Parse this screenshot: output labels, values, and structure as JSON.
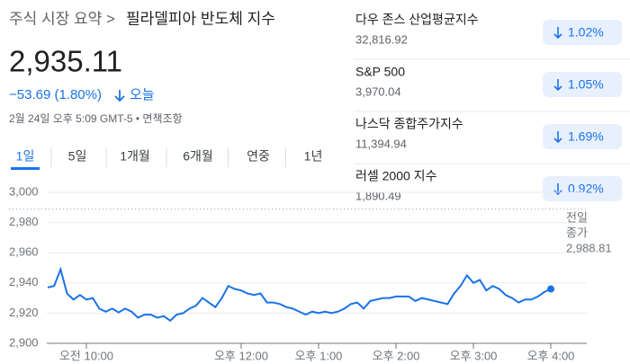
{
  "breadcrumb": "주식 시장 요약 >",
  "page_title": "필라델피아 반도체 지수",
  "price": "2,935.11",
  "change": "−53.69 (1.80%)",
  "change_period": "오늘",
  "timestamp": "2월 24일 오후 5:09 GMT-5 • 면책조항",
  "tabs": [
    "1일",
    "5일",
    "1개월",
    "6개월",
    "연중",
    "1년"
  ],
  "selected_tab": 0,
  "indices": [
    {
      "name": "다우 존스 산업평균지수",
      "value": "32,816.92",
      "change": "1.02%"
    },
    {
      "name": "S&P 500",
      "value": "3,970.04",
      "change": "1.05%"
    },
    {
      "name": "나스닥 종합주가지수",
      "value": "11,394.94",
      "change": "1.69%"
    },
    {
      "name": "러셀 2000 지수",
      "value": "1,890.49",
      "change": "0.92%"
    }
  ],
  "chart_data": {
    "type": "line",
    "color": "#1a73e8",
    "x": [
      570,
      575,
      580,
      585,
      590,
      595,
      600,
      605,
      610,
      615,
      620,
      625,
      630,
      635,
      640,
      645,
      650,
      655,
      660,
      665,
      670,
      675,
      680,
      685,
      690,
      695,
      700,
      705,
      710,
      715,
      720,
      725,
      730,
      735,
      740,
      745,
      750,
      755,
      760,
      765,
      770,
      775,
      780,
      785,
      790,
      795,
      800,
      805,
      810,
      815,
      820,
      825,
      830,
      835,
      840,
      845,
      850,
      855,
      860,
      865,
      870,
      875,
      880,
      885,
      890,
      895,
      900,
      905,
      910,
      915,
      920,
      925,
      930,
      935,
      940,
      945,
      950,
      955,
      960
    ],
    "values": [
      2937,
      2938,
      2949,
      2933,
      2929,
      2932,
      2929,
      2930,
      2923,
      2921,
      2923,
      2920.5,
      2923,
      2921,
      2917,
      2919,
      2919,
      2917,
      2918,
      2915,
      2919,
      2920,
      2923,
      2925,
      2930,
      2927,
      2924,
      2930,
      2938,
      2936,
      2935,
      2933,
      2932,
      2933,
      2927,
      2927,
      2926,
      2924,
      2923,
      2921,
      2919,
      2921,
      2920,
      2921,
      2920,
      2921,
      2923,
      2926,
      2927,
      2923,
      2928,
      2929,
      2930,
      2930,
      2931,
      2931,
      2931,
      2928,
      2930,
      2929,
      2928,
      2927,
      2926,
      2933,
      2938,
      2945,
      2940,
      2942,
      2935,
      2938,
      2936,
      2932,
      2930,
      2927,
      2929,
      2929,
      2931,
      2934,
      2936
    ],
    "xlim": [
      570,
      960
    ],
    "xticks": [
      {
        "value": 600,
        "label": "오전 10:00"
      },
      {
        "value": 720,
        "label": "오후 12:00"
      },
      {
        "value": 780,
        "label": "오후 1:00"
      },
      {
        "value": 840,
        "label": "오후 2:00"
      },
      {
        "value": 900,
        "label": "오후 3:00"
      },
      {
        "value": 960,
        "label": "오후 4:00"
      }
    ],
    "ylim": [
      2900,
      3000
    ],
    "yticks": [
      {
        "value": 2900,
        "label": "2,900"
      },
      {
        "value": 2920,
        "label": "2,920"
      },
      {
        "value": 2940,
        "label": "2,940"
      },
      {
        "value": 2960,
        "label": "2,960"
      },
      {
        "value": 2980,
        "label": "2,980"
      },
      {
        "value": 3000,
        "label": "3,000"
      }
    ],
    "grid": true,
    "previous_close": {
      "label_lines": [
        "전일",
        "종가"
      ],
      "value": 2988.81,
      "value_label": "2,988.81"
    }
  }
}
